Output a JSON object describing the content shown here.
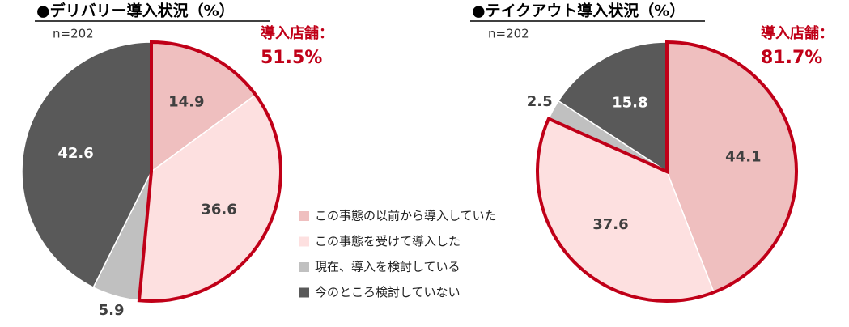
{
  "chart_data": [
    {
      "type": "pie",
      "title": "●デリバリー導入状況（%）",
      "subtitle": "n=202",
      "values": [
        14.9,
        36.6,
        5.9,
        42.6
      ],
      "adoption": {
        "label": "導入店舗：",
        "value": 51.5,
        "value_label": "51.5%"
      }
    },
    {
      "type": "pie",
      "title": "●テイクアウト導入状況（%）",
      "subtitle": "n=202",
      "values": [
        44.1,
        37.6,
        2.5,
        15.8
      ],
      "adoption": {
        "label": "導入店舗：",
        "value": 81.7,
        "value_label": "81.7%"
      }
    }
  ],
  "legend": {
    "categories": [
      "この事態の以前から導入していた",
      "この事態を受けて導入した",
      "現在、導入を検討している",
      "今のところ検討していない"
    ],
    "colors": [
      "#efbfbf",
      "#fde0e0",
      "#c0c0c0",
      "#595959"
    ]
  }
}
